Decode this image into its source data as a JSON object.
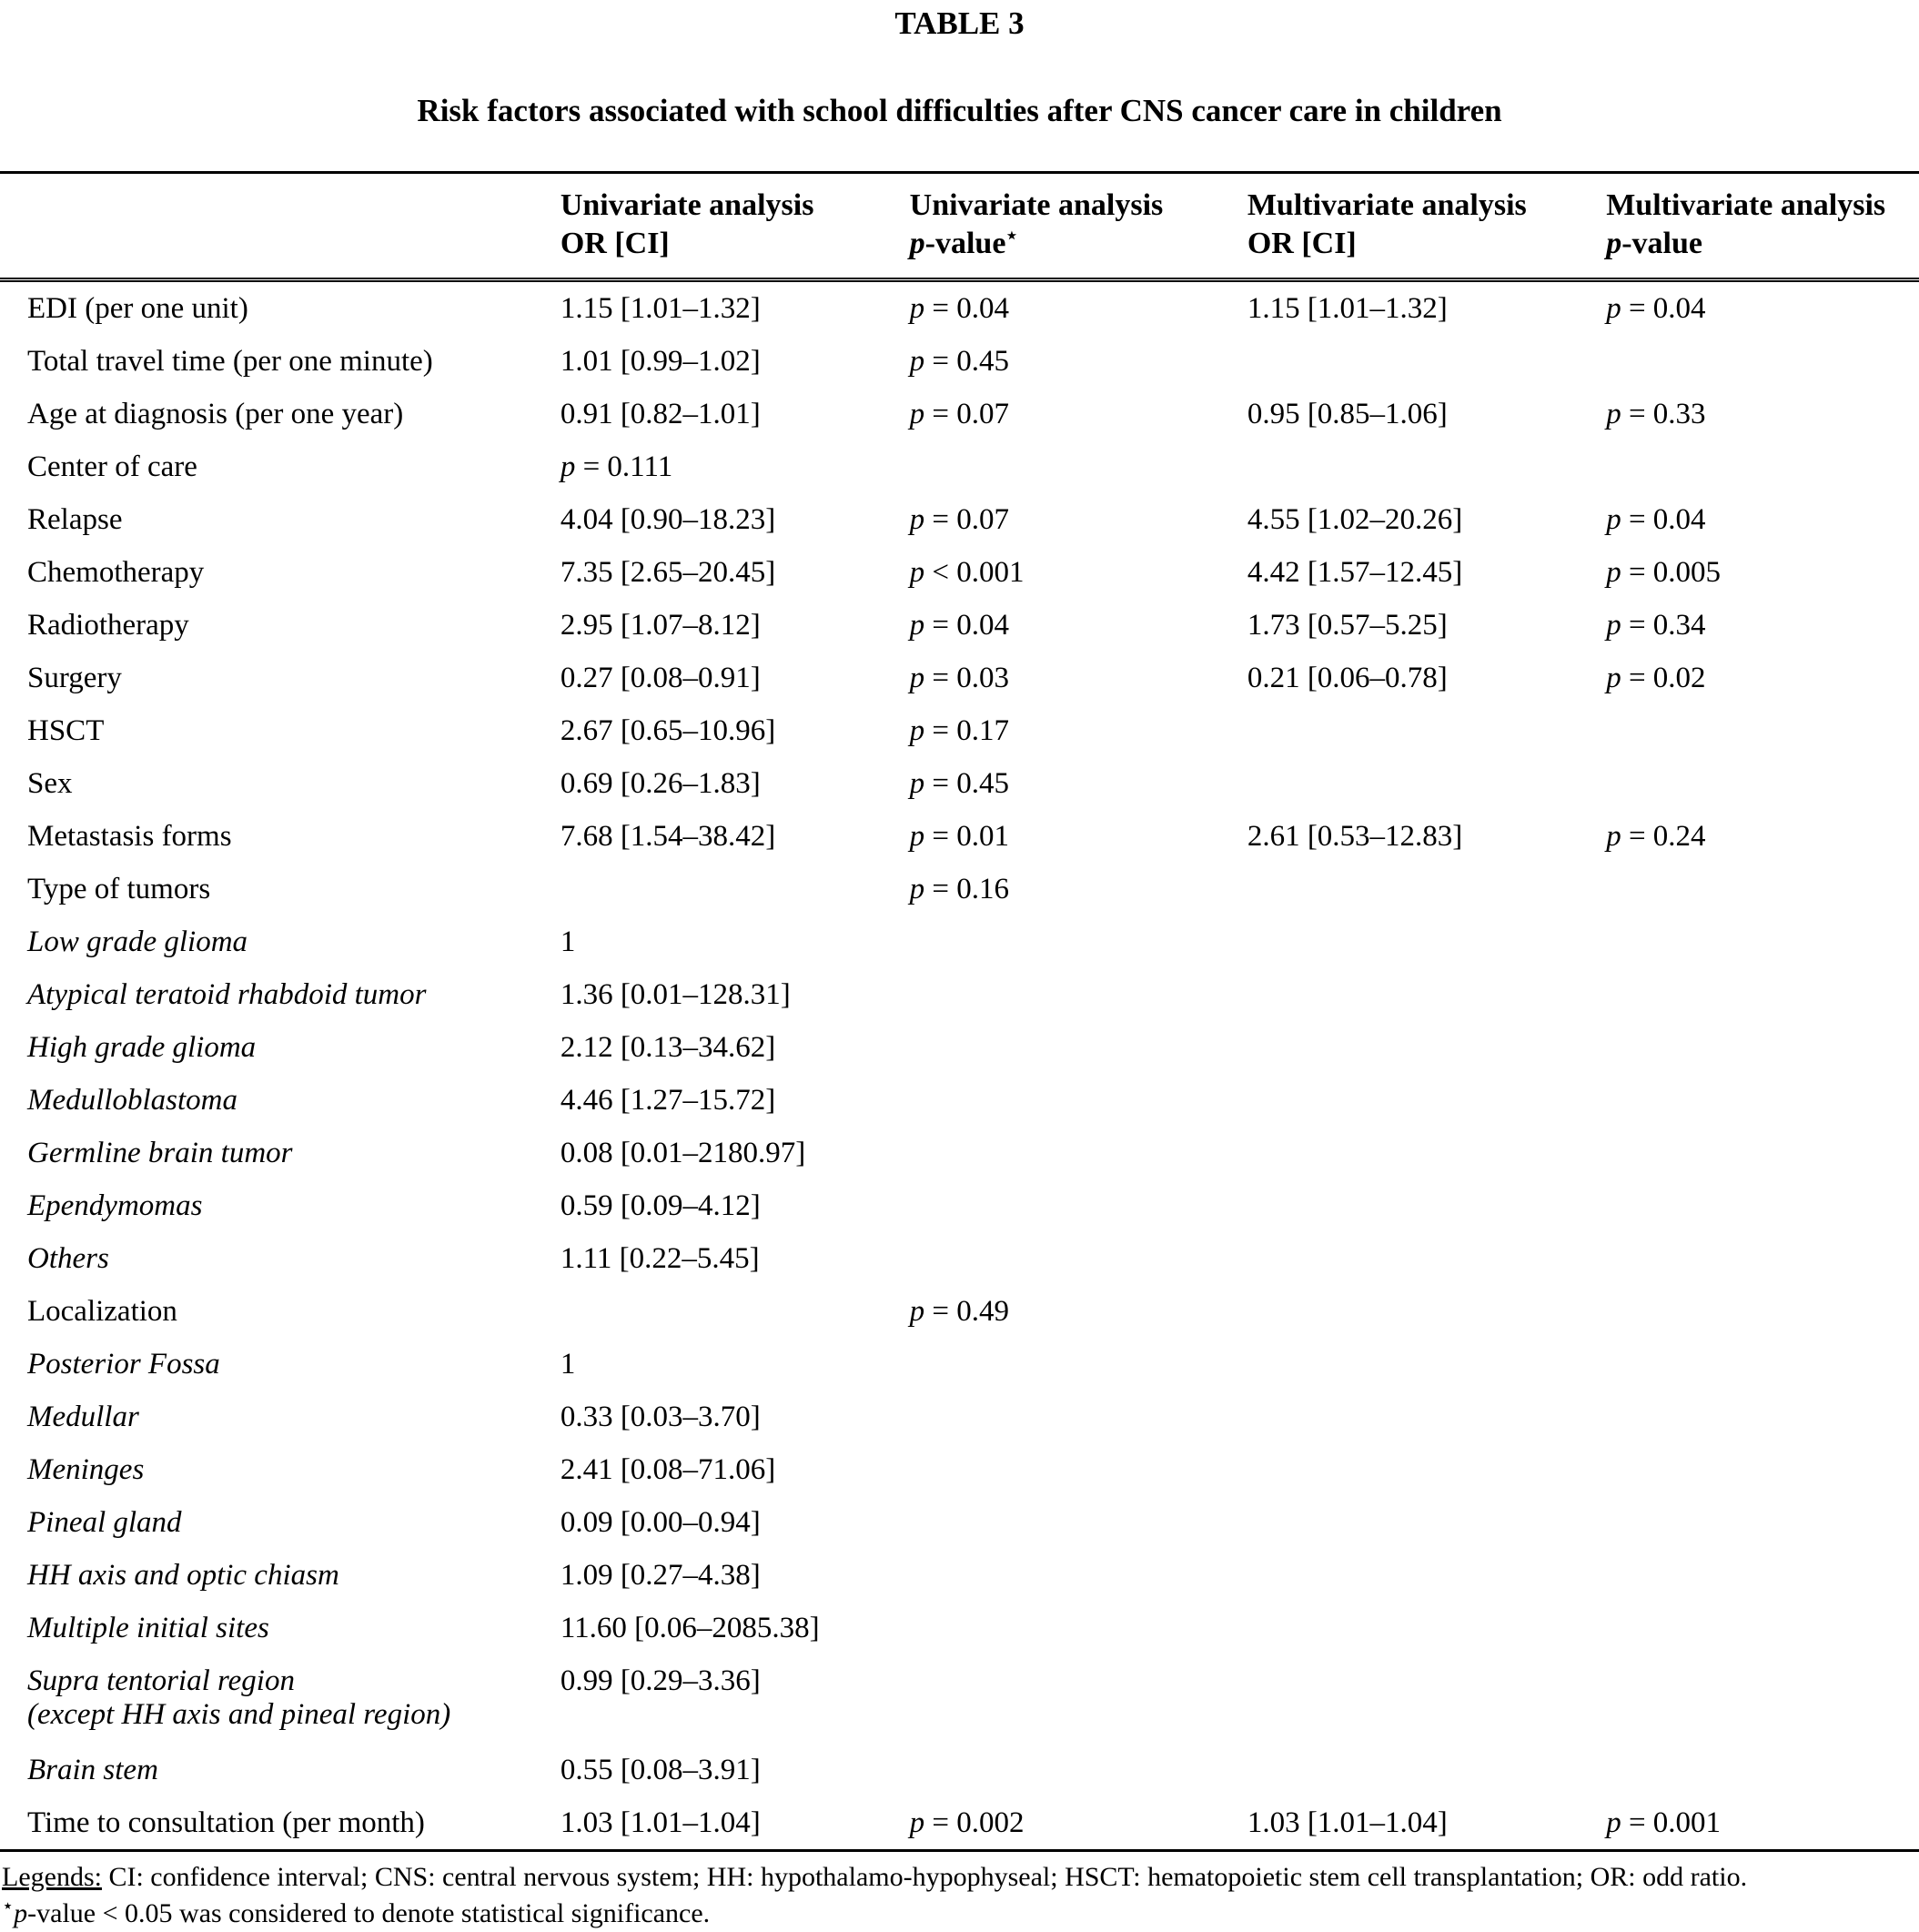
{
  "table_label": "TABLE 3",
  "table_title": "Risk factors associated with school difficulties after CNS cancer care in children",
  "columns": [
    {
      "line1": "",
      "line2": ""
    },
    {
      "line1": "Univariate analysis",
      "line2": "OR [CI]"
    },
    {
      "line1": "Univariate analysis",
      "line2": "p-value",
      "star": "⋆"
    },
    {
      "line1": "Multivariate analysis",
      "line2": "OR [CI]"
    },
    {
      "line1": "Multivariate analysis",
      "line2": "p-value"
    }
  ],
  "rows": [
    {
      "label": "EDI (per one unit)",
      "italic": false,
      "cells": [
        "1.15 [1.01–1.32]",
        "p = 0.04",
        "1.15 [1.01–1.32]",
        "p = 0.04"
      ]
    },
    {
      "label": "Total travel time (per one minute)",
      "italic": false,
      "cells": [
        "1.01 [0.99–1.02]",
        "p = 0.45",
        "",
        ""
      ]
    },
    {
      "label": "Age at diagnosis (per one year)",
      "italic": false,
      "cells": [
        "0.91 [0.82–1.01]",
        "p = 0.07",
        "0.95 [0.85–1.06]",
        "p = 0.33"
      ]
    },
    {
      "label": "Center of care",
      "italic": false,
      "cells": [
        "p = 0.111",
        "",
        "",
        ""
      ]
    },
    {
      "label": "Relapse",
      "italic": false,
      "cells": [
        "4.04 [0.90–18.23]",
        "p = 0.07",
        "4.55 [1.02–20.26]",
        "p = 0.04"
      ]
    },
    {
      "label": "Chemotherapy",
      "italic": false,
      "cells": [
        "7.35 [2.65–20.45]",
        "p < 0.001",
        "4.42 [1.57–12.45]",
        "p = 0.005"
      ]
    },
    {
      "label": "Radiotherapy",
      "italic": false,
      "cells": [
        "2.95 [1.07–8.12]",
        "p = 0.04",
        "1.73 [0.57–5.25]",
        "p = 0.34"
      ]
    },
    {
      "label": "Surgery",
      "italic": false,
      "cells": [
        "0.27 [0.08–0.91]",
        "p = 0.03",
        "0.21 [0.06–0.78]",
        "p = 0.02"
      ]
    },
    {
      "label": "HSCT",
      "italic": false,
      "cells": [
        "2.67 [0.65–10.96]",
        "p = 0.17",
        "",
        ""
      ]
    },
    {
      "label": "Sex",
      "italic": false,
      "cells": [
        "0.69 [0.26–1.83]",
        "p = 0.45",
        "",
        ""
      ]
    },
    {
      "label": "Metastasis forms",
      "italic": false,
      "cells": [
        "7.68 [1.54–38.42]",
        "p = 0.01",
        "2.61 [0.53–12.83]",
        "p = 0.24"
      ]
    },
    {
      "label": "Type of tumors",
      "italic": false,
      "cells": [
        "",
        "p = 0.16",
        "",
        ""
      ]
    },
    {
      "label": "Low grade glioma",
      "italic": true,
      "cells": [
        "1",
        "",
        "",
        ""
      ]
    },
    {
      "label": "Atypical teratoid rhabdoid tumor",
      "italic": true,
      "cells": [
        "1.36 [0.01–128.31]",
        "",
        "",
        ""
      ]
    },
    {
      "label": "High grade glioma",
      "italic": true,
      "cells": [
        "2.12 [0.13–34.62]",
        "",
        "",
        ""
      ]
    },
    {
      "label": "Medulloblastoma",
      "italic": true,
      "cells": [
        "4.46 [1.27–15.72]",
        "",
        "",
        ""
      ]
    },
    {
      "label": "Germline brain tumor",
      "italic": true,
      "cells": [
        "0.08 [0.01–2180.97]",
        "",
        "",
        ""
      ]
    },
    {
      "label": "Ependymomas",
      "italic": true,
      "cells": [
        "0.59 [0.09–4.12]",
        "",
        "",
        ""
      ]
    },
    {
      "label": "Others",
      "italic": true,
      "cells": [
        "1.11 [0.22–5.45]",
        "",
        "",
        ""
      ]
    },
    {
      "label": "Localization",
      "italic": false,
      "cells": [
        "",
        "p = 0.49",
        "",
        ""
      ]
    },
    {
      "label": "Posterior Fossa",
      "italic": true,
      "cells": [
        "1",
        "",
        "",
        ""
      ]
    },
    {
      "label": "Medullar",
      "italic": true,
      "cells": [
        "0.33 [0.03–3.70]",
        "",
        "",
        ""
      ]
    },
    {
      "label": "Meninges",
      "italic": true,
      "cells": [
        "2.41 [0.08–71.06]",
        "",
        "",
        ""
      ]
    },
    {
      "label": "Pineal gland",
      "italic": true,
      "cells": [
        "0.09 [0.00–0.94]",
        "",
        "",
        ""
      ]
    },
    {
      "label": "HH axis and optic chiasm",
      "italic": true,
      "cells": [
        "1.09 [0.27–4.38]",
        "",
        "",
        ""
      ]
    },
    {
      "label": "Multiple initial sites",
      "italic": true,
      "cells": [
        "11.60 [0.06–2085.38]",
        "",
        "",
        ""
      ]
    },
    {
      "label": "Supra tentorial region",
      "label2": "(except HH axis and pineal region)",
      "italic": true,
      "cells": [
        "0.99 [0.29–3.36]",
        "",
        "",
        ""
      ]
    },
    {
      "label": "Brain stem",
      "italic": true,
      "cells": [
        "0.55 [0.08–3.91]",
        "",
        "",
        ""
      ]
    },
    {
      "label": "Time to consultation (per month)",
      "italic": false,
      "cells": [
        "1.03 [1.01–1.04]",
        "p = 0.002",
        "1.03 [1.01–1.04]",
        "p = 0.001"
      ]
    }
  ],
  "footer": {
    "legend_label": "Legends:",
    "legend_text": " CI: confidence interval; CNS: central nervous system; HH: hypothalamo-hypophyseal; HSCT: hematopoietic stem cell transplantation; OR: odd ratio.",
    "note_star": "⋆",
    "note_text": "p-value < 0.05 was considered to denote statistical significance."
  }
}
